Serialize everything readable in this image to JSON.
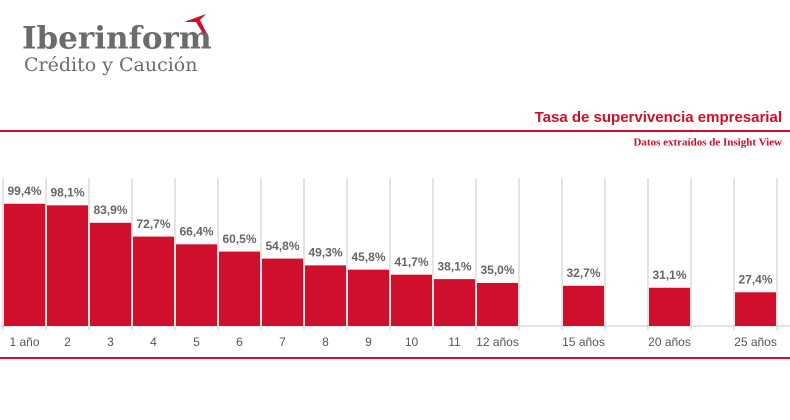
{
  "logo": {
    "name": "Iberinform",
    "tagline": "Crédito y Caución"
  },
  "chart_data": {
    "type": "bar",
    "title": "Tasa de supervivencia empresarial",
    "subtitle": "Datos extraídos de Insight View",
    "categories": [
      "1 año",
      "2",
      "3",
      "4",
      "5",
      "6",
      "7",
      "8",
      "9",
      "10",
      "11",
      "12 años",
      null,
      "15 años",
      null,
      "20 años",
      null,
      "25 años"
    ],
    "values": [
      99.4,
      98.1,
      83.9,
      72.7,
      66.4,
      60.5,
      54.8,
      49.3,
      45.8,
      41.7,
      38.1,
      35.0,
      null,
      32.7,
      null,
      31.1,
      null,
      27.4
    ],
    "value_labels": [
      "99,4%",
      "98,1%",
      "83,9%",
      "72,7%",
      "66,4%",
      "60,5%",
      "54,8%",
      "49,3%",
      "45,8%",
      "41,7%",
      "38,1%",
      "35,0%",
      null,
      "32,7%",
      null,
      "31,1%",
      null,
      "27,4%"
    ],
    "color": "#cf0f2b",
    "ylim": [
      0,
      100
    ]
  }
}
